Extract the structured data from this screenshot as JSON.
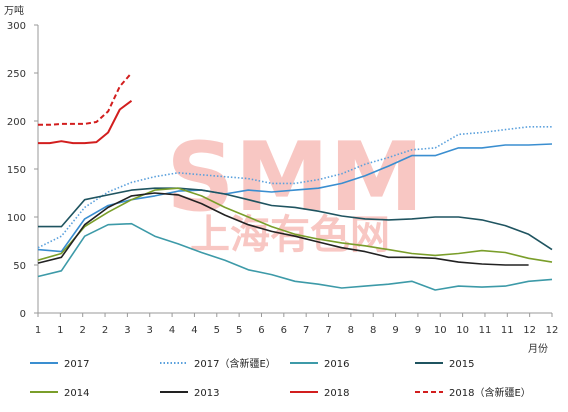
{
  "watermark": {
    "line1": "SMM",
    "line2": "上海有色网",
    "color": "#e8382a"
  },
  "chart_data": {
    "type": "line",
    "title": "",
    "y_unit_label": "万吨",
    "x_unit_label": "月份",
    "ylim": [
      0,
      300
    ],
    "y_ticks": [
      0,
      50,
      100,
      150,
      200,
      250,
      300
    ],
    "xlim": [
      1,
      12
    ],
    "x_tick_labels": [
      "1",
      "1",
      "2",
      "2",
      "3",
      "3",
      "4",
      "4",
      "5",
      "5",
      "6",
      "6",
      "7",
      "7",
      "8",
      "8",
      "9",
      "9",
      "10",
      "10",
      "11",
      "11",
      "12",
      "12"
    ],
    "grid": false,
    "legend_position": "bottom",
    "series": [
      {
        "name": "2017",
        "color": "#3a8ed0",
        "dash": "solid",
        "x": [
          1,
          1.5,
          2,
          2.5,
          3,
          3.5,
          4,
          4.5,
          5,
          5.5,
          6,
          6.5,
          7,
          7.5,
          8,
          8.5,
          9,
          9.5,
          10,
          10.5,
          11,
          11.5,
          12
        ],
        "y": [
          66,
          64,
          98,
          112,
          118,
          122,
          127,
          128,
          124,
          128,
          126,
          128,
          130,
          135,
          143,
          153,
          164,
          164,
          172,
          172,
          175,
          175,
          176
        ]
      },
      {
        "name": "2017（含新疆E）",
        "color": "#5aa0dc",
        "dash": "dotted",
        "x": [
          1,
          1.5,
          2,
          2.5,
          3,
          3.5,
          4,
          4.5,
          5,
          5.5,
          6,
          6.5,
          7,
          7.5,
          8,
          8.5,
          9,
          9.5,
          10,
          10.5,
          11,
          11.5,
          12
        ],
        "y": [
          68,
          80,
          110,
          126,
          136,
          142,
          146,
          144,
          142,
          140,
          135,
          135,
          139,
          145,
          155,
          162,
          170,
          172,
          186,
          188,
          191,
          194,
          194
        ]
      },
      {
        "name": "2016",
        "color": "#3d9aa8",
        "dash": "solid",
        "x": [
          1,
          1.5,
          2,
          2.5,
          3,
          3.5,
          4,
          4.5,
          5,
          5.5,
          6,
          6.5,
          7,
          7.5,
          8,
          8.5,
          9,
          9.5,
          10,
          10.5,
          11,
          11.5,
          12
        ],
        "y": [
          38,
          44,
          80,
          92,
          93,
          80,
          72,
          63,
          55,
          45,
          40,
          33,
          30,
          26,
          28,
          30,
          33,
          24,
          28,
          27,
          28,
          33,
          35
        ]
      },
      {
        "name": "2015",
        "color": "#1f5460",
        "dash": "solid",
        "x": [
          1,
          1.5,
          2,
          2.5,
          3,
          3.5,
          4,
          4.5,
          5,
          5.5,
          6,
          6.5,
          7,
          7.5,
          8,
          8.5,
          9,
          9.5,
          10,
          10.5,
          11,
          11.5,
          12
        ],
        "y": [
          90,
          90,
          118,
          123,
          128,
          130,
          130,
          128,
          124,
          118,
          112,
          110,
          106,
          101,
          98,
          97,
          98,
          100,
          100,
          97,
          91,
          82,
          66
        ]
      },
      {
        "name": "2014",
        "color": "#7a9e2a",
        "dash": "solid",
        "x": [
          1,
          1.5,
          2,
          2.5,
          3,
          3.5,
          4,
          4.5,
          5,
          5.5,
          6,
          6.5,
          7,
          7.5,
          8,
          8.5,
          9,
          9.5,
          10,
          10.5,
          11,
          11.5,
          12
        ],
        "y": [
          55,
          62,
          90,
          105,
          118,
          128,
          130,
          122,
          110,
          100,
          90,
          82,
          77,
          73,
          70,
          66,
          62,
          60,
          62,
          65,
          63,
          57,
          53
        ]
      },
      {
        "name": "2013",
        "color": "#222222",
        "dash": "solid",
        "x": [
          1,
          1.5,
          2,
          2.5,
          3,
          3.5,
          4,
          4.5,
          5,
          5.5,
          6,
          6.5,
          7,
          7.5,
          8,
          8.5,
          9,
          9.5,
          10,
          10.5,
          11,
          11.5
        ],
        "y": [
          52,
          58,
          92,
          110,
          122,
          125,
          123,
          114,
          102,
          92,
          85,
          80,
          74,
          68,
          64,
          58,
          58,
          57,
          53,
          51,
          50,
          50
        ]
      },
      {
        "name": "2018",
        "color": "#d21e1e",
        "dash": "solid",
        "x": [
          1,
          1.25,
          1.5,
          1.75,
          2,
          2.25,
          2.5,
          2.75,
          3
        ],
        "y": [
          177,
          177,
          179,
          177,
          177,
          178,
          188,
          212,
          221
        ]
      },
      {
        "name": "2018（含新疆E）",
        "color": "#d21e1e",
        "dash": "dashed",
        "x": [
          1,
          1.25,
          1.5,
          1.75,
          2,
          2.25,
          2.5,
          2.75,
          3
        ],
        "y": [
          196,
          196,
          197,
          197,
          197,
          199,
          210,
          236,
          250
        ]
      }
    ]
  }
}
